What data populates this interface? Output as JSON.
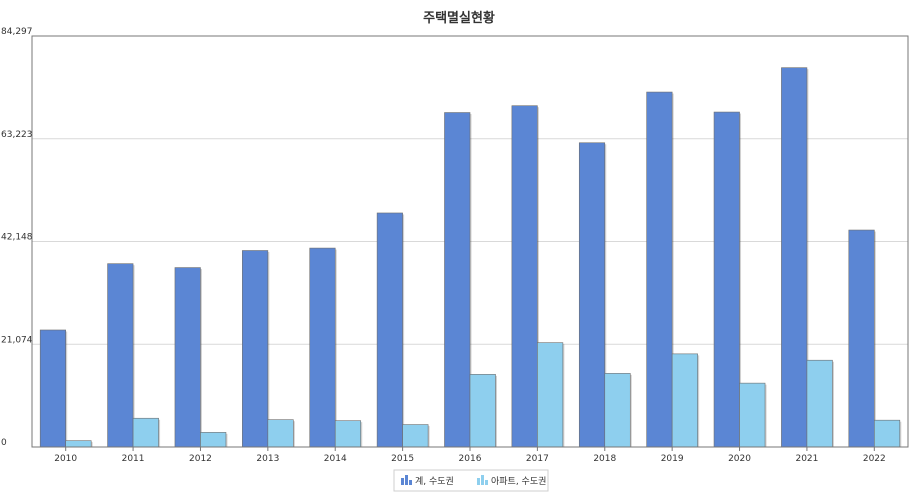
{
  "chart_data": {
    "type": "bar",
    "title": "주택멸실현황",
    "categories": [
      "2010",
      "2011",
      "2012",
      "2013",
      "2014",
      "2015",
      "2016",
      "2017",
      "2018",
      "2019",
      "2020",
      "2021",
      "2022"
    ],
    "series": [
      {
        "name": "계, 수도권",
        "color": "#5b86d4",
        "values": [
          24000,
          37600,
          36800,
          40300,
          40800,
          48000,
          68600,
          70000,
          62400,
          72800,
          68700,
          77800,
          44500
        ]
      },
      {
        "name": "아파트, 수도권",
        "color": "#8ecfee",
        "values": [
          1300,
          5900,
          3000,
          5600,
          5400,
          4600,
          14900,
          21400,
          15100,
          19100,
          13100,
          17800,
          5500
        ]
      }
    ],
    "yticks": [
      "0",
      "21,074",
      "42,148",
      "63,223",
      "84,297"
    ],
    "ylim": [
      0,
      84297
    ],
    "grid": true,
    "legend": "bottom-center"
  }
}
